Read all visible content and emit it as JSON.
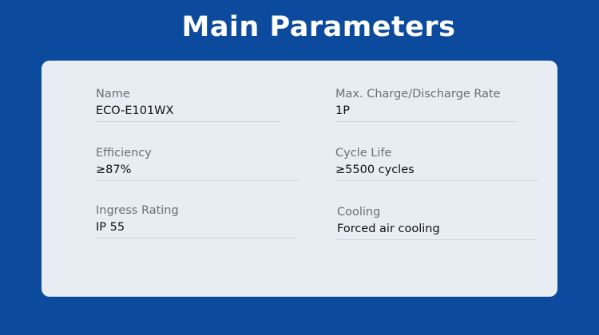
{
  "title": "Main Parameters",
  "colors": {
    "background": "#0b4a9c",
    "card": "#e8ecf3"
  },
  "params": [
    {
      "label": "Name",
      "value": "ECO-E101WX"
    },
    {
      "label": "Max. Charge/Discharge Rate",
      "value": "1P"
    },
    {
      "label": "Efficiency",
      "value": "≥87%"
    },
    {
      "label": "Cycle Life",
      "value": "≥5500 cycles"
    },
    {
      "label": "Ingress Rating",
      "value": "IP 55"
    },
    {
      "label": "Cooling",
      "value": "Forced air cooling"
    }
  ]
}
